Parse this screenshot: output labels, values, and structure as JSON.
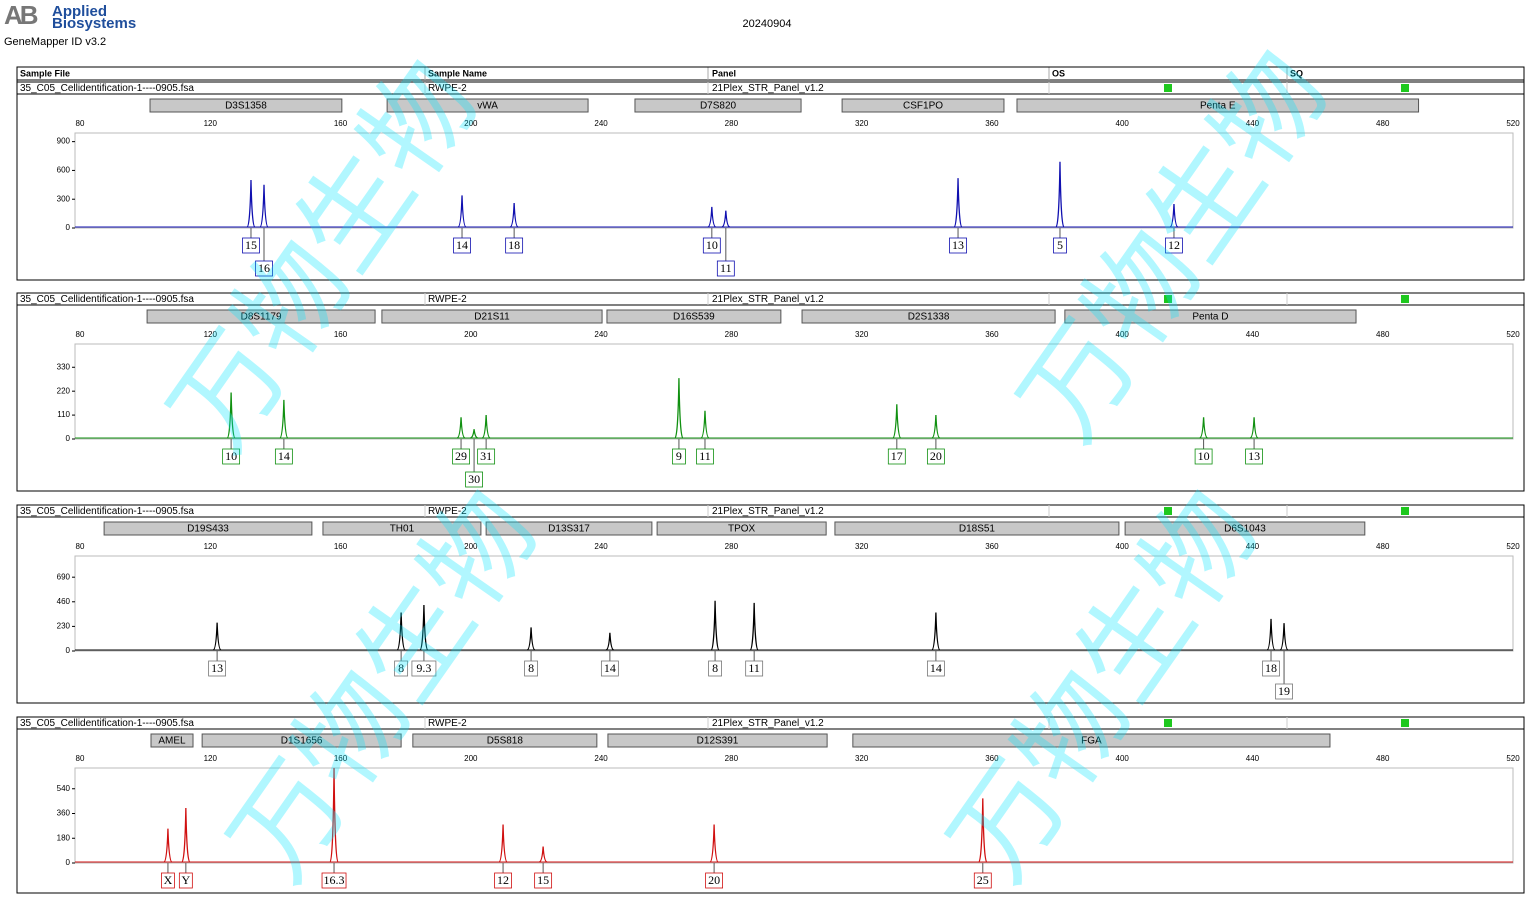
{
  "header": {
    "logo_mark": "AB",
    "company_line1": "Applied",
    "company_line2": "Biosystems",
    "software": "GeneMapper ID v3.2",
    "date": "20240904"
  },
  "columns": [
    "Sample File",
    "Sample Name",
    "Panel",
    "OS",
    "SQ"
  ],
  "watermark": "万物生物",
  "chart_data": [
    {
      "type": "line",
      "sample_file": "35_C05_Cellidentification-1----0905.fsa",
      "sample_name": "RWPE-2",
      "panel": "21Plex_STR_Panel_v1.2",
      "color": "#1010b0",
      "xlim": [
        80,
        520
      ],
      "xticks": [
        80,
        120,
        160,
        200,
        240,
        280,
        320,
        360,
        400,
        440,
        480,
        520
      ],
      "ylim": [
        0,
        990
      ],
      "yticks": [
        0,
        300,
        600,
        900
      ],
      "markers": [
        {
          "name": "D3S1358",
          "start": 101.5,
          "end": 160.4
        },
        {
          "name": "vWA",
          "start": 174.3,
          "end": 236
        },
        {
          "name": "D7S820",
          "start": 250.4,
          "end": 301.4
        },
        {
          "name": "CSF1PO",
          "start": 314,
          "end": 363.7
        },
        {
          "name": "Penta E",
          "start": 367.7,
          "end": 491
        }
      ],
      "peaks": [
        {
          "label": "15",
          "x": 132.5,
          "y": 500
        },
        {
          "label": "16",
          "x": 136.5,
          "y": 450
        },
        {
          "label": "14",
          "x": 197.3,
          "y": 340
        },
        {
          "label": "18",
          "x": 213.3,
          "y": 260
        },
        {
          "label": "10",
          "x": 274,
          "y": 220
        },
        {
          "label": "11",
          "x": 278.3,
          "y": 180
        },
        {
          "label": "13",
          "x": 349.6,
          "y": 520
        },
        {
          "label": "5",
          "x": 380.9,
          "y": 690
        },
        {
          "label": "12",
          "x": 415.9,
          "y": 250
        }
      ]
    },
    {
      "type": "line",
      "sample_file": "35_C05_Cellidentification-1----0905.fsa",
      "sample_name": "RWPE-2",
      "panel": "21Plex_STR_Panel_v1.2",
      "color": "#109010",
      "xlim": [
        80,
        520
      ],
      "xticks": [
        80,
        120,
        160,
        200,
        240,
        280,
        320,
        360,
        400,
        440,
        480,
        520
      ],
      "ylim": [
        0,
        437
      ],
      "yticks": [
        0,
        110,
        220,
        330
      ],
      "markers": [
        {
          "name": "D8S1179",
          "start": 100.6,
          "end": 170.6
        },
        {
          "name": "D21S11",
          "start": 172.7,
          "end": 240.3
        },
        {
          "name": "D16S539",
          "start": 241.8,
          "end": 295.2
        },
        {
          "name": "D2S1338",
          "start": 301.7,
          "end": 379.4
        },
        {
          "name": "Penta D",
          "start": 382.4,
          "end": 471.8
        }
      ],
      "peaks": [
        {
          "label": "10",
          "x": 126.4,
          "y": 214
        },
        {
          "label": "14",
          "x": 142.6,
          "y": 180
        },
        {
          "label": "29",
          "x": 197,
          "y": 100
        },
        {
          "label": "30",
          "x": 201,
          "y": 45
        },
        {
          "label": "31",
          "x": 204.7,
          "y": 110
        },
        {
          "label": "9",
          "x": 263.9,
          "y": 280
        },
        {
          "label": "11",
          "x": 271.9,
          "y": 130
        },
        {
          "label": "17",
          "x": 330.8,
          "y": 160
        },
        {
          "label": "20",
          "x": 342.8,
          "y": 110
        },
        {
          "label": "10",
          "x": 425,
          "y": 100
        },
        {
          "label": "13",
          "x": 440.5,
          "y": 100
        }
      ]
    },
    {
      "type": "line",
      "sample_file": "35_C05_Cellidentification-1----0905.fsa",
      "sample_name": "RWPE-2",
      "panel": "21Plex_STR_Panel_v1.2",
      "color": "#000000",
      "xlim": [
        80,
        520
      ],
      "xticks": [
        80,
        120,
        160,
        200,
        240,
        280,
        320,
        360,
        400,
        440,
        480,
        520
      ],
      "ylim": [
        0,
        888
      ],
      "yticks": [
        0,
        230,
        460,
        690
      ],
      "markers": [
        {
          "name": "D19S433",
          "start": 87.4,
          "end": 151.2
        },
        {
          "name": "TH01",
          "start": 154.6,
          "end": 203.1
        },
        {
          "name": "D13S317",
          "start": 204.7,
          "end": 255.6
        },
        {
          "name": "TPOX",
          "start": 257.2,
          "end": 309.1
        },
        {
          "name": "D18S51",
          "start": 311.8,
          "end": 399
        },
        {
          "name": "D6S1043",
          "start": 400.9,
          "end": 474.5
        }
      ],
      "peaks": [
        {
          "label": "13",
          "x": 122.1,
          "y": 265
        },
        {
          "label": "8",
          "x": 178.6,
          "y": 360
        },
        {
          "label": "9.3",
          "x": 185.6,
          "y": 430
        },
        {
          "label": "8",
          "x": 218.5,
          "y": 220
        },
        {
          "label": "14",
          "x": 242.7,
          "y": 170
        },
        {
          "label": "8",
          "x": 275,
          "y": 470
        },
        {
          "label": "11",
          "x": 287,
          "y": 450
        },
        {
          "label": "14",
          "x": 342.8,
          "y": 360
        },
        {
          "label": "18",
          "x": 445.7,
          "y": 300
        },
        {
          "label": "19",
          "x": 449.7,
          "y": 260
        }
      ]
    },
    {
      "type": "line",
      "sample_file": "35_C05_Cellidentification-1----0905.fsa",
      "sample_name": "RWPE-2",
      "panel": "21Plex_STR_Panel_v1.2",
      "color": "#d01010",
      "xlim": [
        80,
        520
      ],
      "xticks": [
        80,
        120,
        160,
        200,
        240,
        280,
        320,
        360,
        400,
        440,
        480,
        520
      ],
      "ylim": [
        0,
        691
      ],
      "yticks": [
        0,
        180,
        360,
        540
      ],
      "markers": [
        {
          "name": "AMEL",
          "start": 101.8,
          "end": 114.7
        },
        {
          "name": "D1S1656",
          "start": 117.5,
          "end": 178.6
        },
        {
          "name": "D5S818",
          "start": 182.2,
          "end": 238.7
        },
        {
          "name": "D12S391",
          "start": 242.1,
          "end": 309.4
        },
        {
          "name": "FGA",
          "start": 317.3,
          "end": 463.8
        }
      ],
      "peaks": [
        {
          "label": "X",
          "x": 107,
          "y": 250
        },
        {
          "label": "Y",
          "x": 112.5,
          "y": 400
        },
        {
          "label": "16.3",
          "x": 158,
          "y": 690
        },
        {
          "label": "12",
          "x": 209.9,
          "y": 280
        },
        {
          "label": "15",
          "x": 222.2,
          "y": 120
        },
        {
          "label": "20",
          "x": 274.7,
          "y": 280
        },
        {
          "label": "25",
          "x": 357.2,
          "y": 470
        }
      ]
    }
  ]
}
